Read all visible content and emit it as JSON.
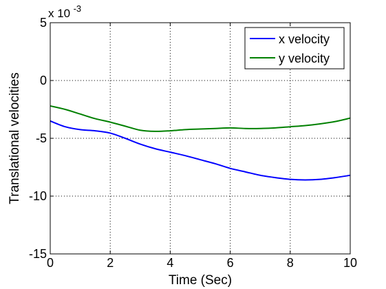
{
  "chart_data": {
    "type": "line",
    "xlabel": "Time (Sec)",
    "ylabel": "Translational velocities",
    "y_multiplier": {
      "base": "x 10",
      "exponent": "-3"
    },
    "xlim": [
      0,
      10
    ],
    "ylim": [
      -15,
      5
    ],
    "x_ticks": [
      "0",
      "2",
      "4",
      "6",
      "8",
      "10"
    ],
    "y_ticks": [
      "5",
      "0",
      "-5",
      "-10",
      "-15"
    ],
    "grid": true,
    "grid_style": "dotted",
    "legend_position": "top-right",
    "series": [
      {
        "name": "x velocity",
        "color": "#0000ff",
        "x": [
          0,
          0.5,
          1,
          1.5,
          2,
          2.5,
          3,
          3.5,
          4,
          4.5,
          5,
          5.5,
          6,
          6.5,
          7,
          7.5,
          8,
          8.5,
          9,
          9.5,
          10
        ],
        "y": [
          -3.5,
          -4.0,
          -4.25,
          -4.35,
          -4.55,
          -5.0,
          -5.5,
          -5.9,
          -6.2,
          -6.5,
          -6.85,
          -7.2,
          -7.6,
          -7.9,
          -8.2,
          -8.4,
          -8.55,
          -8.6,
          -8.55,
          -8.4,
          -8.2
        ]
      },
      {
        "name": "y velocity",
        "color": "#008000",
        "x": [
          0,
          0.5,
          1,
          1.5,
          2,
          2.5,
          3,
          3.5,
          4,
          4.5,
          5,
          5.5,
          6,
          6.5,
          7,
          7.5,
          8,
          8.5,
          9,
          9.5,
          10
        ],
        "y": [
          -2.2,
          -2.5,
          -2.9,
          -3.3,
          -3.6,
          -3.95,
          -4.3,
          -4.4,
          -4.35,
          -4.25,
          -4.2,
          -4.15,
          -4.1,
          -4.15,
          -4.15,
          -4.1,
          -4.0,
          -3.9,
          -3.75,
          -3.55,
          -3.25
        ]
      }
    ]
  }
}
